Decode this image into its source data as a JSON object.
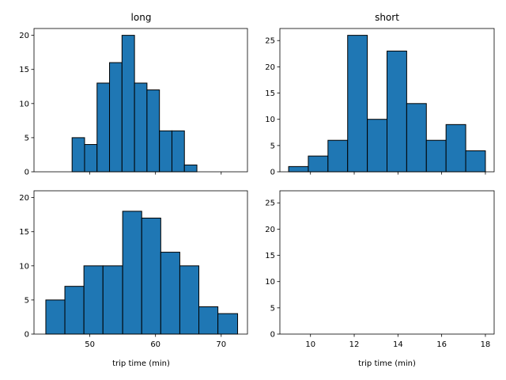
{
  "colors": {
    "bar_fill": "#1f77b4",
    "bar_edge": "#000000",
    "background": "#ffffff"
  },
  "chart_data": [
    {
      "type": "bar",
      "panel": "top-left",
      "title": "long",
      "xlabel": "",
      "xlim": [
        41.5,
        74.0
      ],
      "ylim": [
        0,
        21
      ],
      "yticks": [
        0,
        5,
        10,
        15,
        20
      ],
      "xticks": [
        50,
        60,
        70
      ],
      "show_xticklabels": false,
      "bins": [
        {
          "x0": 47.3,
          "x1": 49.2,
          "value": 5
        },
        {
          "x0": 49.2,
          "x1": 51.1,
          "value": 4
        },
        {
          "x0": 51.1,
          "x1": 53.0,
          "value": 13
        },
        {
          "x0": 53.0,
          "x1": 54.9,
          "value": 16
        },
        {
          "x0": 54.9,
          "x1": 56.8,
          "value": 20
        },
        {
          "x0": 56.8,
          "x1": 58.7,
          "value": 13
        },
        {
          "x0": 58.7,
          "x1": 60.6,
          "value": 12
        },
        {
          "x0": 60.6,
          "x1": 62.5,
          "value": 6
        },
        {
          "x0": 62.5,
          "x1": 64.4,
          "value": 6
        },
        {
          "x0": 64.4,
          "x1": 66.3,
          "value": 1
        }
      ]
    },
    {
      "type": "bar",
      "panel": "top-right",
      "title": "short",
      "xlabel": "",
      "xlim": [
        8.6,
        18.4
      ],
      "ylim": [
        0,
        27.3
      ],
      "yticks": [
        0,
        5,
        10,
        15,
        20,
        25
      ],
      "xticks": [
        10,
        12,
        14,
        16,
        18
      ],
      "show_xticklabels": false,
      "bins": [
        {
          "x0": 9.0,
          "x1": 9.9,
          "value": 1
        },
        {
          "x0": 9.9,
          "x1": 10.8,
          "value": 3
        },
        {
          "x0": 10.8,
          "x1": 11.7,
          "value": 6
        },
        {
          "x0": 11.7,
          "x1": 12.6,
          "value": 26
        },
        {
          "x0": 12.6,
          "x1": 13.5,
          "value": 10
        },
        {
          "x0": 13.5,
          "x1": 14.4,
          "value": 23
        },
        {
          "x0": 14.4,
          "x1": 15.3,
          "value": 13
        },
        {
          "x0": 15.3,
          "x1": 16.2,
          "value": 6
        },
        {
          "x0": 16.2,
          "x1": 17.1,
          "value": 9
        },
        {
          "x0": 17.1,
          "x1": 18.0,
          "value": 4
        }
      ]
    },
    {
      "type": "bar",
      "panel": "bottom-left",
      "title": "",
      "xlabel": "trip time (min)",
      "xlim": [
        41.5,
        74.0
      ],
      "ylim": [
        0,
        21
      ],
      "yticks": [
        0,
        5,
        10,
        15,
        20
      ],
      "xticks": [
        50,
        60,
        70
      ],
      "show_xticklabels": true,
      "bins": [
        {
          "x0": 43.3,
          "x1": 46.2,
          "value": 5
        },
        {
          "x0": 46.2,
          "x1": 49.1,
          "value": 7
        },
        {
          "x0": 49.1,
          "x1": 52.0,
          "value": 10
        },
        {
          "x0": 52.0,
          "x1": 55.0,
          "value": 10
        },
        {
          "x0": 55.0,
          "x1": 57.9,
          "value": 18
        },
        {
          "x0": 57.9,
          "x1": 60.8,
          "value": 17
        },
        {
          "x0": 60.8,
          "x1": 63.7,
          "value": 12
        },
        {
          "x0": 63.7,
          "x1": 66.6,
          "value": 10
        },
        {
          "x0": 66.6,
          "x1": 69.5,
          "value": 4
        },
        {
          "x0": 69.5,
          "x1": 72.5,
          "value": 3
        }
      ]
    },
    {
      "type": "bar",
      "panel": "bottom-right",
      "title": "",
      "xlabel": "trip time (min)",
      "xlim": [
        8.6,
        18.4
      ],
      "ylim": [
        0,
        27.3
      ],
      "yticks": [
        0,
        5,
        10,
        15,
        20,
        25
      ],
      "xticks": [
        10,
        12,
        14,
        16,
        18
      ],
      "show_xticklabels": true,
      "bins": []
    }
  ]
}
